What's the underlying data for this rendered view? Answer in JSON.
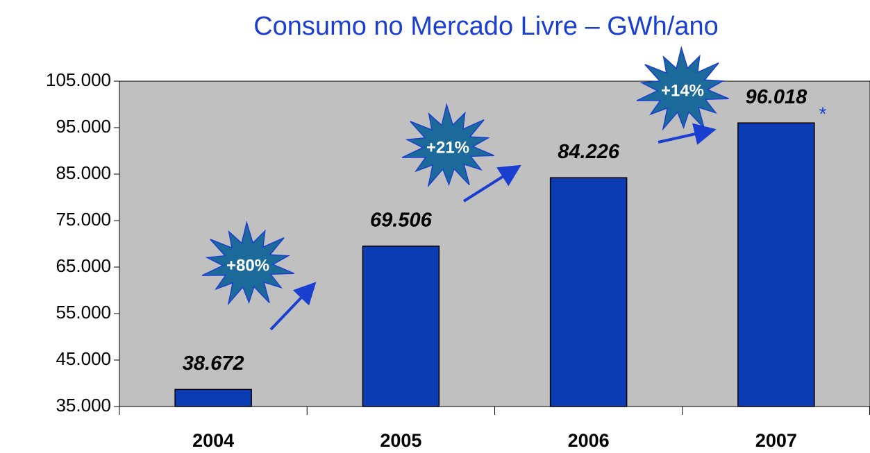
{
  "chart_data": {
    "type": "bar",
    "title": "Consumo no Mercado Livre – GWh/ano",
    "categories": [
      "2004",
      "2005",
      "2006",
      "2007"
    ],
    "values": [
      38672,
      69506,
      84226,
      96018
    ],
    "value_labels": [
      "38.672",
      "69.506",
      "84.226",
      "96.018"
    ],
    "color": "#0b3cb4",
    "ylim": [
      35000,
      105000
    ],
    "yticks": [
      {
        "value": 35000,
        "label": "35.000"
      },
      {
        "value": 45000,
        "label": "45.000"
      },
      {
        "value": 55000,
        "label": "55.000"
      },
      {
        "value": 65000,
        "label": "65.000"
      },
      {
        "value": 75000,
        "label": "75.000"
      },
      {
        "value": 85000,
        "label": "85.000"
      },
      {
        "value": 95000,
        "label": "95.000"
      },
      {
        "value": 105000,
        "label": "105.000"
      }
    ],
    "grid": false,
    "annotations": [
      "+80%",
      "+21%",
      "+14%",
      "*"
    ]
  }
}
